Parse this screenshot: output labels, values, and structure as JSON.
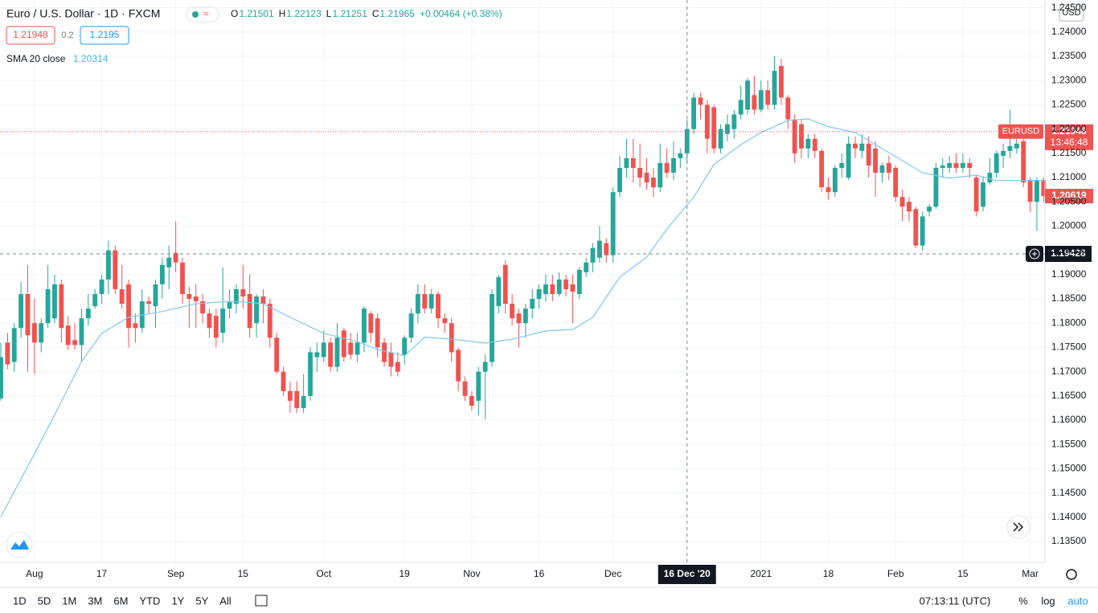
{
  "header": {
    "title": "Euro / U.S. Dollar · 1D · FXCM",
    "quote": {
      "items": [
        {
          "label": "O",
          "value": 1.21501
        },
        {
          "label": "H",
          "value": 1.22123
        },
        {
          "label": "L",
          "value": 1.21251
        },
        {
          "label": "C",
          "value": 1.21965
        }
      ],
      "change": "+0.00464 (+0.38%)"
    },
    "sell": 1.21948,
    "spread": "0.2",
    "buy": 1.2195,
    "indicator": {
      "name": "SMA 20 close",
      "value": 1.20314
    },
    "currency": "USD"
  },
  "chart_data": {
    "type": "candlestick",
    "up_color": "#26a69a",
    "down_color": "#ef5350",
    "xlim": [
      -0.12,
      155.2
    ],
    "xticks": [
      {
        "value": 5,
        "label": "Aug"
      },
      {
        "value": 15,
        "label": "17"
      },
      {
        "value": 26,
        "label": "Sep"
      },
      {
        "value": 36,
        "label": "15"
      },
      {
        "value": 48,
        "label": "Oct"
      },
      {
        "value": 60,
        "label": "19"
      },
      {
        "value": 70,
        "label": "Nov"
      },
      {
        "value": 80,
        "label": "16"
      },
      {
        "value": 91,
        "label": "Dec"
      },
      {
        "value": 113,
        "label": "2021"
      },
      {
        "value": 123,
        "label": "18"
      },
      {
        "value": 133,
        "label": "Feb"
      },
      {
        "value": 143,
        "label": "15"
      },
      {
        "value": 153,
        "label": "Mar"
      }
    ],
    "ylim": [
      1.1307,
      1.2466
    ],
    "yticks": [
      {
        "value": 1.135,
        "label": "1.13500"
      },
      {
        "value": 1.14,
        "label": "1.14000"
      },
      {
        "value": 1.145,
        "label": "1.14500"
      },
      {
        "value": 1.15,
        "label": "1.15000"
      },
      {
        "value": 1.155,
        "label": "1.15500"
      },
      {
        "value": 1.16,
        "label": "1.16000"
      },
      {
        "value": 1.165,
        "label": "1.16500"
      },
      {
        "value": 1.17,
        "label": "1.17000"
      },
      {
        "value": 1.175,
        "label": "1.17500"
      },
      {
        "value": 1.18,
        "label": "1.18000"
      },
      {
        "value": 1.185,
        "label": "1.18500"
      },
      {
        "value": 1.19,
        "label": "1.19000"
      },
      {
        "value": 1.195,
        "label": "1.19500"
      },
      {
        "value": 1.2,
        "label": "1.20000"
      },
      {
        "value": 1.205,
        "label": "1.20500"
      },
      {
        "value": 1.21,
        "label": "1.21000"
      },
      {
        "value": 1.215,
        "label": "1.21500"
      },
      {
        "value": 1.22,
        "label": "1.22000"
      },
      {
        "value": 1.225,
        "label": "1.22500"
      },
      {
        "value": 1.23,
        "label": "1.23000"
      },
      {
        "value": 1.235,
        "label": "1.23500"
      },
      {
        "value": 1.24,
        "label": "1.24000"
      },
      {
        "value": 1.245,
        "label": "1.24500"
      }
    ],
    "grid": true,
    "ohlc": [
      [
        1.1645,
        1.176,
        1.164,
        1.173
      ],
      [
        1.176,
        1.178,
        1.1705,
        1.1715
      ],
      [
        1.172,
        1.18,
        1.17,
        1.179
      ],
      [
        1.179,
        1.1885,
        1.177,
        1.186
      ],
      [
        1.186,
        1.192,
        1.17,
        1.1775
      ],
      [
        1.18,
        1.185,
        1.1695,
        1.176
      ],
      [
        1.176,
        1.181,
        1.174,
        1.18
      ],
      [
        1.18,
        1.192,
        1.179,
        1.187
      ],
      [
        1.181,
        1.19,
        1.18,
        1.188
      ],
      [
        1.188,
        1.189,
        1.176,
        1.179
      ],
      [
        1.1795,
        1.1815,
        1.1745,
        1.1755
      ],
      [
        1.1765,
        1.18,
        1.1745,
        1.1755
      ],
      [
        1.1755,
        1.183,
        1.172,
        1.181
      ],
      [
        1.181,
        1.186,
        1.1795,
        1.183
      ],
      [
        1.1835,
        1.187,
        1.183,
        1.186
      ],
      [
        1.186,
        1.19,
        1.184,
        1.189
      ],
      [
        1.189,
        1.197,
        1.186,
        1.195
      ],
      [
        1.195,
        1.196,
        1.186,
        1.187
      ],
      [
        1.187,
        1.192,
        1.183,
        1.184
      ],
      [
        1.188,
        1.189,
        1.175,
        1.179
      ],
      [
        1.18,
        1.182,
        1.176,
        1.179
      ],
      [
        1.179,
        1.187,
        1.178,
        1.1845
      ],
      [
        1.1845,
        1.1855,
        1.182,
        1.184
      ],
      [
        1.1835,
        1.189,
        1.179,
        1.188
      ],
      [
        1.188,
        1.1935,
        1.185,
        1.192
      ],
      [
        1.1915,
        1.196,
        1.187,
        1.1935
      ],
      [
        1.1945,
        1.201,
        1.1905,
        1.1925
      ],
      [
        1.1925,
        1.1935,
        1.184,
        1.186
      ],
      [
        1.186,
        1.1875,
        1.179,
        1.185
      ],
      [
        1.1855,
        1.188,
        1.179,
        1.1845
      ],
      [
        1.1845,
        1.186,
        1.18,
        1.182
      ],
      [
        1.182,
        1.183,
        1.177,
        1.179
      ],
      [
        1.1815,
        1.183,
        1.175,
        1.177
      ],
      [
        1.178,
        1.1915,
        1.176,
        1.183
      ],
      [
        1.183,
        1.187,
        1.181,
        1.1845
      ],
      [
        1.184,
        1.188,
        1.182,
        1.187
      ],
      [
        1.187,
        1.192,
        1.183,
        1.1855
      ],
      [
        1.186,
        1.19,
        1.177,
        1.179
      ],
      [
        1.18,
        1.186,
        1.177,
        1.1855
      ],
      [
        1.1855,
        1.187,
        1.18,
        1.184
      ],
      [
        1.184,
        1.185,
        1.175,
        1.177
      ],
      [
        1.177,
        1.178,
        1.1695,
        1.17
      ],
      [
        1.17,
        1.171,
        1.165,
        1.166
      ],
      [
        1.166,
        1.168,
        1.1615,
        1.164
      ],
      [
        1.166,
        1.168,
        1.1615,
        1.1625
      ],
      [
        1.1625,
        1.1695,
        1.1615,
        1.165
      ],
      [
        1.165,
        1.175,
        1.164,
        1.174
      ],
      [
        1.173,
        1.176,
        1.17,
        1.174
      ],
      [
        1.173,
        1.1785,
        1.172,
        1.176
      ],
      [
        1.176,
        1.177,
        1.17,
        1.171
      ],
      [
        1.171,
        1.18,
        1.17,
        1.177
      ],
      [
        1.1785,
        1.179,
        1.172,
        1.173
      ],
      [
        1.176,
        1.178,
        1.1725,
        1.1735
      ],
      [
        1.1735,
        1.178,
        1.172,
        1.176
      ],
      [
        1.176,
        1.1835,
        1.174,
        1.183
      ],
      [
        1.182,
        1.1825,
        1.176,
        1.178
      ],
      [
        1.181,
        1.182,
        1.173,
        1.175
      ],
      [
        1.176,
        1.177,
        1.171,
        1.172
      ],
      [
        1.174,
        1.176,
        1.169,
        1.171
      ],
      [
        1.172,
        1.174,
        1.169,
        1.17
      ],
      [
        1.1735,
        1.1775,
        1.1715,
        1.177
      ],
      [
        1.177,
        1.183,
        1.176,
        1.182
      ],
      [
        1.182,
        1.188,
        1.18,
        1.186
      ],
      [
        1.186,
        1.188,
        1.182,
        1.183
      ],
      [
        1.183,
        1.187,
        1.182,
        1.186
      ],
      [
        1.186,
        1.1865,
        1.179,
        1.181
      ],
      [
        1.181,
        1.182,
        1.178,
        1.18
      ],
      [
        1.18,
        1.181,
        1.172,
        1.174
      ],
      [
        1.1745,
        1.175,
        1.166,
        1.168
      ],
      [
        1.168,
        1.169,
        1.164,
        1.165
      ],
      [
        1.165,
        1.166,
        1.162,
        1.163
      ],
      [
        1.164,
        1.171,
        1.161,
        1.17
      ],
      [
        1.17,
        1.1735,
        1.1602,
        1.172
      ],
      [
        1.172,
        1.187,
        1.171,
        1.186
      ],
      [
        1.1835,
        1.19,
        1.182,
        1.1895
      ],
      [
        1.192,
        1.193,
        1.182,
        1.184
      ],
      [
        1.184,
        1.186,
        1.1795,
        1.181
      ],
      [
        1.182,
        1.183,
        1.175,
        1.18
      ],
      [
        1.18,
        1.184,
        1.177,
        1.183
      ],
      [
        1.183,
        1.187,
        1.181,
        1.185
      ],
      [
        1.185,
        1.188,
        1.183,
        1.187
      ],
      [
        1.186,
        1.19,
        1.1845,
        1.188
      ],
      [
        1.188,
        1.19,
        1.1845,
        1.186
      ],
      [
        1.186,
        1.1905,
        1.1855,
        1.189
      ],
      [
        1.189,
        1.19,
        1.1855,
        1.187
      ],
      [
        1.188,
        1.19,
        1.18,
        1.1865
      ],
      [
        1.186,
        1.1915,
        1.185,
        1.191
      ],
      [
        1.1905,
        1.1935,
        1.1895,
        1.1925
      ],
      [
        1.1925,
        1.1965,
        1.1905,
        1.1955
      ],
      [
        1.1935,
        1.2,
        1.1925,
        1.197
      ],
      [
        1.1965,
        1.1975,
        1.1925,
        1.194
      ],
      [
        1.194,
        1.208,
        1.1925,
        1.207
      ],
      [
        1.207,
        1.2145,
        1.206,
        1.212
      ],
      [
        1.212,
        1.218,
        1.21,
        1.214
      ],
      [
        1.214,
        1.218,
        1.209,
        1.212
      ],
      [
        1.212,
        1.217,
        1.208,
        1.21
      ],
      [
        1.211,
        1.214,
        1.2075,
        1.209
      ],
      [
        1.21,
        1.212,
        1.206,
        1.208
      ],
      [
        1.208,
        1.217,
        1.207,
        1.213
      ],
      [
        1.213,
        1.216,
        1.21,
        1.211
      ],
      [
        1.211,
        1.2175,
        1.2095,
        1.214
      ],
      [
        1.214,
        1.216,
        1.212,
        1.215
      ],
      [
        1.215,
        1.222,
        1.213,
        1.22
      ],
      [
        1.22,
        1.2275,
        1.219,
        1.2265
      ],
      [
        1.2265,
        1.2275,
        1.222,
        1.225
      ],
      [
        1.225,
        1.226,
        1.215,
        1.218
      ],
      [
        1.2245,
        1.225,
        1.215,
        1.216
      ],
      [
        1.216,
        1.221,
        1.215,
        1.22
      ],
      [
        1.219,
        1.223,
        1.2175,
        1.221
      ],
      [
        1.22,
        1.224,
        1.218,
        1.223
      ],
      [
        1.223,
        1.229,
        1.222,
        1.226
      ],
      [
        1.224,
        1.2305,
        1.223,
        1.23
      ],
      [
        1.227,
        1.231,
        1.223,
        1.224
      ],
      [
        1.224,
        1.23,
        1.2235,
        1.228
      ],
      [
        1.228,
        1.23,
        1.224,
        1.225
      ],
      [
        1.225,
        1.235,
        1.224,
        1.232
      ],
      [
        1.233,
        1.2345,
        1.225,
        1.2265
      ],
      [
        1.2265,
        1.227,
        1.22,
        1.222
      ],
      [
        1.222,
        1.223,
        1.213,
        1.215
      ],
      [
        1.221,
        1.222,
        1.214,
        1.216
      ],
      [
        1.216,
        1.219,
        1.214,
        1.218
      ],
      [
        1.218,
        1.219,
        1.214,
        1.2155
      ],
      [
        1.2155,
        1.216,
        1.207,
        1.208
      ],
      [
        1.208,
        1.21,
        1.2055,
        1.207
      ],
      [
        1.207,
        1.2125,
        1.206,
        1.212
      ],
      [
        1.212,
        1.215,
        1.21,
        1.213
      ],
      [
        1.21,
        1.2185,
        1.2095,
        1.217
      ],
      [
        1.217,
        1.2185,
        1.214,
        1.216
      ],
      [
        1.2155,
        1.219,
        1.214,
        1.217
      ],
      [
        1.217,
        1.2185,
        1.21,
        1.2125
      ],
      [
        1.216,
        1.2175,
        1.206,
        1.211
      ],
      [
        1.211,
        1.213,
        1.209,
        1.2125
      ],
      [
        1.213,
        1.2145,
        1.2095,
        1.211
      ],
      [
        1.212,
        1.2125,
        1.205,
        1.206
      ],
      [
        1.206,
        1.2075,
        1.201,
        1.204
      ],
      [
        1.205,
        1.206,
        1.201,
        1.203
      ],
      [
        1.2035,
        1.204,
        1.1955,
        1.196
      ],
      [
        1.196,
        1.203,
        1.195,
        1.202
      ],
      [
        1.203,
        1.2045,
        1.202,
        1.204
      ],
      [
        1.204,
        1.213,
        1.2035,
        1.212
      ],
      [
        1.212,
        1.214,
        1.21,
        1.2125
      ],
      [
        1.212,
        1.2145,
        1.211,
        1.213
      ],
      [
        1.213,
        1.215,
        1.211,
        1.212
      ],
      [
        1.212,
        1.215,
        1.211,
        1.213
      ],
      [
        1.213,
        1.214,
        1.21,
        1.212
      ],
      [
        1.21,
        1.2105,
        1.202,
        1.203
      ],
      [
        1.204,
        1.21,
        1.203,
        1.209
      ],
      [
        1.209,
        1.214,
        1.2085,
        1.211
      ],
      [
        1.211,
        1.2155,
        1.21,
        1.215
      ],
      [
        1.2145,
        1.217,
        1.212,
        1.2155
      ],
      [
        1.2155,
        1.224,
        1.214,
        1.2165
      ],
      [
        1.216,
        1.218,
        1.215,
        1.217
      ],
      [
        1.2175,
        1.218,
        1.208,
        1.209
      ],
      [
        1.2095,
        1.21,
        1.203,
        1.205
      ],
      [
        1.205,
        1.21,
        1.199,
        1.2095
      ],
      [
        1.2095,
        1.21,
        1.205,
        1.20619
      ]
    ],
    "sma": {
      "name": "SMA 20 close",
      "color": "#7ec8e8",
      "x": [
        0,
        5,
        9,
        12,
        15,
        19,
        24,
        29,
        33,
        36,
        39,
        43,
        48,
        53,
        56,
        60,
        63,
        67,
        72,
        76,
        81,
        85,
        88,
        92,
        96,
        99,
        103,
        106,
        110,
        113,
        117,
        120,
        123,
        127,
        130,
        134,
        137,
        141,
        145,
        148,
        152,
        155
      ],
      "values": [
        1.1401,
        1.1531,
        1.1638,
        1.1721,
        1.1779,
        1.1812,
        1.1824,
        1.184,
        1.1844,
        1.1844,
        1.184,
        1.1812,
        1.1779,
        1.1762,
        1.1746,
        1.1733,
        1.1771,
        1.1767,
        1.1759,
        1.1767,
        1.1784,
        1.1787,
        1.1812,
        1.1895,
        1.1936,
        1.1994,
        1.206,
        1.2127,
        1.2168,
        1.2193,
        1.2218,
        1.2221,
        1.2205,
        1.2193,
        1.2168,
        1.2135,
        1.211,
        1.2099,
        1.2105,
        1.2094,
        1.2094,
        1.2094
      ]
    },
    "last_price": {
      "symbol": "EURUSD",
      "value": 1.21948,
      "countdown": "13:46:48",
      "color": "#ef5350"
    },
    "sma_price": {
      "value": 1.20619,
      "color": "#ef5350"
    },
    "crosshair": {
      "x": {
        "value": 102,
        "label": "16 Dec '20"
      },
      "y": 1.19428
    }
  },
  "toolbar": {
    "ranges": [
      "1D",
      "5D",
      "1M",
      "3M",
      "6M",
      "YTD",
      "1Y",
      "5Y",
      "All"
    ],
    "time": "07:13:11 (UTC)",
    "options": [
      "%",
      "log",
      "auto"
    ]
  }
}
